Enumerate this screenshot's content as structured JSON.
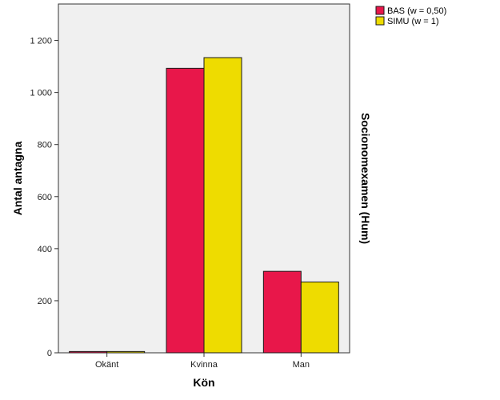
{
  "colors": {
    "plot_background": "#f0f0f0",
    "bas": "#e8174a",
    "simu": "#eedc00",
    "bar_stroke": "#1a1a1a"
  },
  "chart_data": {
    "type": "bar",
    "categories": [
      "Okänt",
      "Kvinna",
      "Man"
    ],
    "series": [
      {
        "name": "BAS (w = 0,50)",
        "values": [
          5,
          1093,
          313
        ]
      },
      {
        "name": "SIMU (w = 1)",
        "values": [
          5,
          1134,
          272
        ]
      }
    ],
    "xlabel": "Kön",
    "ylabel": "Antal antagna",
    "panel_label": "Socionomexamen (Hum)",
    "yticks": [
      "0",
      "200",
      "400",
      "600",
      "800",
      "1 000",
      "1 200"
    ],
    "ylim": [
      0,
      1340
    ],
    "grid": false,
    "legend_position": "top-right"
  }
}
